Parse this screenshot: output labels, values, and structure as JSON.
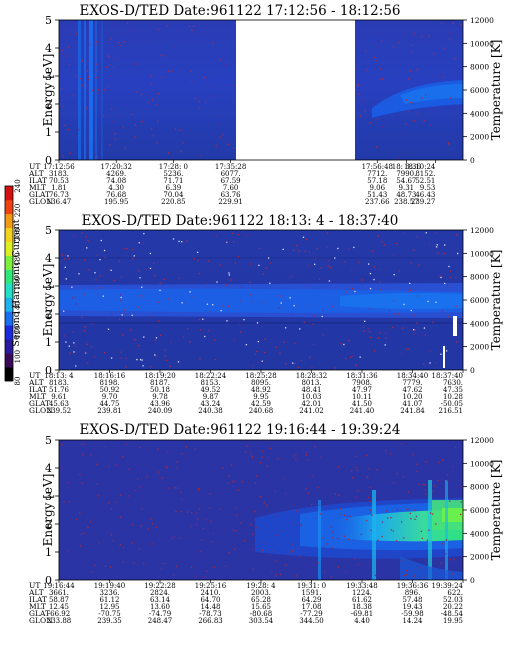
{
  "colorbar": {
    "label": "Second Harmonic Current",
    "ticks": [
      "80",
      "100",
      "120",
      "140",
      "160",
      "180",
      "200",
      "220",
      "240"
    ],
    "colors": [
      "#000000",
      "#3a0a5a",
      "#2a1aa0",
      "#1a2adc",
      "#1a6ef0",
      "#1cb4ee",
      "#22e0c8",
      "#2ee87c",
      "#7cf23a",
      "#dcf022",
      "#f2d21c",
      "#f29a16",
      "#ee4414",
      "#d41010"
    ]
  },
  "row_labels": [
    "UT",
    "ALT",
    "ILAT",
    "MLT",
    "GLAT",
    "GLON"
  ],
  "chart_data": [
    {
      "type": "heatmap",
      "title": "EXOS-D/TED   Date:961122   17:12:56 - 18:12:56",
      "ylabel": "Energy [eV]",
      "y2label": "Temperature [K]",
      "yticks": [
        "0",
        "1",
        "2",
        "3",
        "4",
        "5"
      ],
      "y2ticks": [
        "0",
        "2000",
        "4000",
        "6000",
        "8000",
        "10000",
        "12000"
      ],
      "ylim": [
        0,
        5
      ],
      "y2lim": [
        0,
        12000
      ],
      "gap": [
        0.538,
        0.825
      ],
      "columns": [
        {
          "UT": "17:12:56",
          "ALT": "3183.",
          "ILAT": "70.53",
          "MLT": "1.81",
          "GLAT": "76.73",
          "GLON": "136.47"
        },
        {
          "UT": "17:20:32",
          "ALT": "4269.",
          "ILAT": "74.08",
          "MLT": "4.30",
          "GLAT": "76.68",
          "GLON": "195.95"
        },
        {
          "UT": "17:28: 0",
          "ALT": "5236.",
          "ILAT": "71.71",
          "MLT": "6.39",
          "GLAT": "70.04",
          "GLON": "220.85"
        },
        {
          "UT": "17:35:28",
          "ALT": "6077.",
          "ILAT": "67.59",
          "MLT": "7.60",
          "GLAT": "63.76",
          "GLON": "229.91"
        },
        {
          "UT": "17:56:48",
          "ALT": "7712.",
          "ILAT": "57.18",
          "MLT": "9.06",
          "GLAT": "51.43",
          "GLON": "237.66"
        },
        {
          "UT": "18: 3:36",
          "ALT": "7990.",
          "ILAT": "54.67",
          "MLT": "9.31",
          "GLAT": "48.73",
          "GLON": "238.57"
        },
        {
          "UT": "18:10:24",
          "ALT": "8152.",
          "ILAT": "52.51",
          "MLT": "9.53",
          "GLAT": "46.43",
          "GLON": "239.27"
        }
      ]
    },
    {
      "type": "heatmap",
      "title": "EXOS-D/TED   Date:961122   18:13: 4 - 18:37:40",
      "ylabel": "Energy [eV]",
      "y2label": "Temperature [K]",
      "yticks": [
        "0",
        "1",
        "2",
        "3",
        "4",
        "5"
      ],
      "y2ticks": [
        "0",
        "2000",
        "4000",
        "6000",
        "8000",
        "10000",
        "12000"
      ],
      "ylim": [
        0,
        5
      ],
      "y2lim": [
        0,
        12000
      ],
      "columns": [
        {
          "UT": "18:13: 4",
          "ALT": "8183.",
          "ILAT": "51.76",
          "MLT": "9.61",
          "GLAT": "45.63",
          "GLON": "239.52"
        },
        {
          "UT": "18:16:16",
          "ALT": "8198.",
          "ILAT": "50.92",
          "MLT": "9.70",
          "GLAT": "44.75",
          "GLON": "239.81"
        },
        {
          "UT": "18:19:20",
          "ALT": "8187.",
          "ILAT": "50.18",
          "MLT": "9.78",
          "GLAT": "43.96",
          "GLON": "240.09"
        },
        {
          "UT": "18:22:24",
          "ALT": "8153.",
          "ILAT": "49.52",
          "MLT": "9.87",
          "GLAT": "43.24",
          "GLON": "240.38"
        },
        {
          "UT": "18:25:28",
          "ALT": "8095.",
          "ILAT": "48.92",
          "MLT": "9.95",
          "GLAT": "42.59",
          "GLON": "240.68"
        },
        {
          "UT": "18:28:32",
          "ALT": "8013.",
          "ILAT": "48.41",
          "MLT": "10.03",
          "GLAT": "42.01",
          "GLON": "241.02"
        },
        {
          "UT": "18:31:36",
          "ALT": "7908.",
          "ILAT": "47.97",
          "MLT": "10.11",
          "GLAT": "41.50",
          "GLON": "241.40"
        },
        {
          "UT": "18:34:40",
          "ALT": "7779.",
          "ILAT": "47.62",
          "MLT": "10.20",
          "GLAT": "41.07",
          "GLON": "241.84"
        },
        {
          "UT": "18:37:40",
          "ALT": "7630.",
          "ILAT": "47.35",
          "MLT": "10.28",
          "GLAT": "-50.05",
          "GLON": "216.51"
        }
      ]
    },
    {
      "type": "heatmap",
      "title": "EXOS-D/TED   Date:961122   19:16:44 - 19:39:24",
      "ylabel": "Energy [eV]",
      "y2label": "Temperature [K]",
      "yticks": [
        "0",
        "1",
        "2",
        "3",
        "4",
        "5"
      ],
      "y2ticks": [
        "0",
        "2000",
        "4000",
        "6000",
        "8000",
        "10000",
        "12000"
      ],
      "ylim": [
        0,
        5
      ],
      "y2lim": [
        0,
        12000
      ],
      "columns": [
        {
          "UT": "19:16:44",
          "ALT": "3661.",
          "ILAT": "58.87",
          "MLT": "12.45",
          "GLAT": "-66.92",
          "GLON": "233.88"
        },
        {
          "UT": "19:19:40",
          "ALT": "3236.",
          "ILAT": "61.12",
          "MLT": "12.95",
          "GLAT": "-70.75",
          "GLON": "239.35"
        },
        {
          "UT": "19:22:28",
          "ALT": "2824.",
          "ILAT": "63.14",
          "MLT": "13.60",
          "GLAT": "-74.79",
          "GLON": "248.47"
        },
        {
          "UT": "19:25:16",
          "ALT": "2410.",
          "ILAT": "64.70",
          "MLT": "14.48",
          "GLAT": "-78.73",
          "GLON": "266.83"
        },
        {
          "UT": "19:28: 4",
          "ALT": "2003.",
          "ILAT": "65.28",
          "MLT": "15.65",
          "GLAT": "-80.68",
          "GLON": "303.54"
        },
        {
          "UT": "19:31: 0",
          "ALT": "1591.",
          "ILAT": "64.29",
          "MLT": "17.08",
          "GLAT": "-77.29",
          "GLON": "344.50"
        },
        {
          "UT": "19:33:48",
          "ALT": "1224.",
          "ILAT": "61.62",
          "MLT": "18.38",
          "GLAT": "-69.81",
          "GLON": "4.40"
        },
        {
          "UT": "19:36:36",
          "ALT": "896.",
          "ILAT": "57.48",
          "MLT": "19.43",
          "GLAT": "-59.98",
          "GLON": "14.24"
        },
        {
          "UT": "19:39:24",
          "ALT": "622.",
          "ILAT": "52.03",
          "MLT": "20.22",
          "GLAT": "-48.54",
          "GLON": "19.95"
        }
      ]
    }
  ]
}
